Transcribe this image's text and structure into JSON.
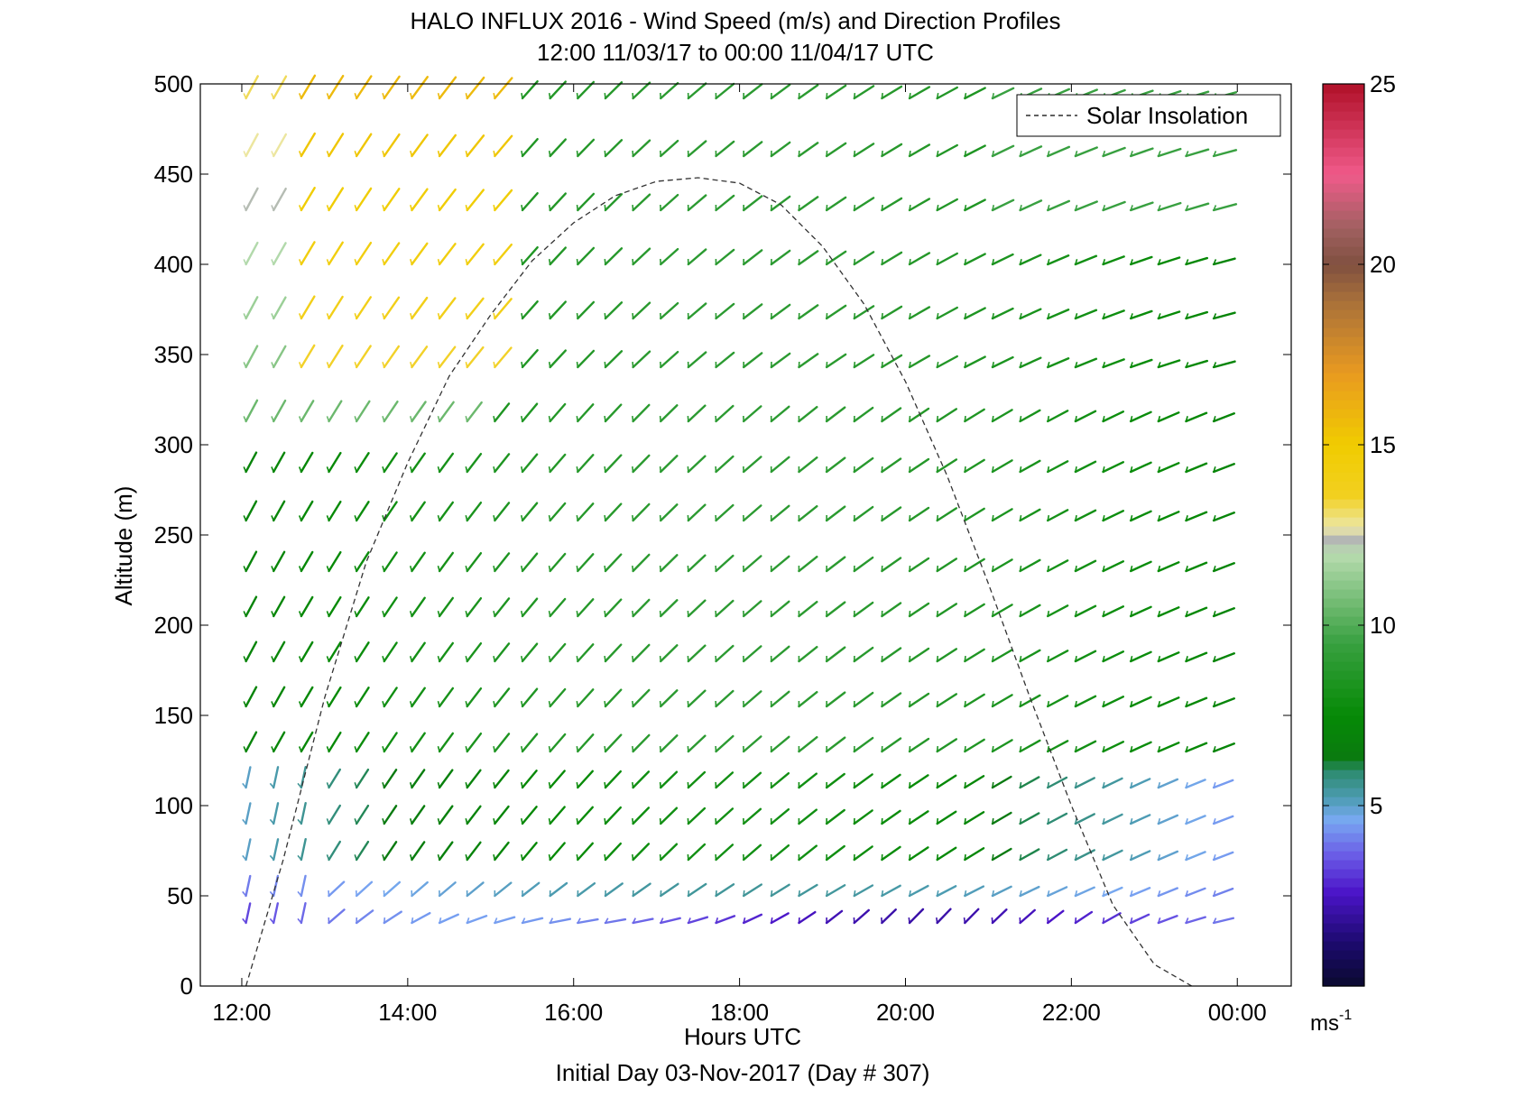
{
  "title_line1": "HALO INFLUX 2016 - Wind Speed (m/s) and Direction Profiles",
  "title_line2": "12:00 11/03/17 to 00:00 11/04/17  UTC",
  "xlabel": "Hours UTC",
  "ylabel": "Altitude (m)",
  "footer": "Initial Day 03-Nov-2017 (Day # 307)",
  "legend_label": "Solar Insolation",
  "colorbar": {
    "unit": "ms",
    "unit_exponent": "-1",
    "tick_labels": [
      "5",
      "10",
      "15",
      "20",
      "25"
    ],
    "tick_values": [
      5,
      10,
      15,
      20,
      25
    ],
    "range": [
      0,
      25
    ],
    "colors": [
      {
        "v": 0,
        "c": "#0a0a2e"
      },
      {
        "v": 1.2,
        "c": "#1c0a6e"
      },
      {
        "v": 2.6,
        "c": "#4b14c8"
      },
      {
        "v": 3.6,
        "c": "#6a5ae6"
      },
      {
        "v": 4.6,
        "c": "#78a8f2"
      },
      {
        "v": 5.2,
        "c": "#4e9cb4"
      },
      {
        "v": 6.0,
        "c": "#2a8a6a"
      },
      {
        "v": 6.3,
        "c": "#0a7a10"
      },
      {
        "v": 7.5,
        "c": "#068a06"
      },
      {
        "v": 9.5,
        "c": "#38a040"
      },
      {
        "v": 12.0,
        "c": "#b8dcb0"
      },
      {
        "v": 12.4,
        "c": "#b4b4b4"
      },
      {
        "v": 12.7,
        "c": "#ece8a8"
      },
      {
        "v": 13.6,
        "c": "#f2d020"
      },
      {
        "v": 15.0,
        "c": "#f0cc00"
      },
      {
        "v": 17.0,
        "c": "#e89a20"
      },
      {
        "v": 19.0,
        "c": "#a8703a"
      },
      {
        "v": 20.0,
        "c": "#805040"
      },
      {
        "v": 21.0,
        "c": "#a06060"
      },
      {
        "v": 22.5,
        "c": "#f05a8a"
      },
      {
        "v": 25.0,
        "c": "#b01028"
      }
    ]
  },
  "chart_data": {
    "type": "quiver",
    "title": "HALO INFLUX 2016 - Wind Speed (m/s) and Direction Profiles",
    "subtitle": "12:00 11/03/17 to 00:00 11/04/17  UTC",
    "xlabel": "Hours UTC",
    "ylabel": "Altitude (m)",
    "xlim_hours": [
      11.5,
      24.65
    ],
    "ylim": [
      0,
      500
    ],
    "x_ticks": [
      12,
      14,
      16,
      18,
      20,
      22,
      24
    ],
    "x_tick_labels": [
      "12:00",
      "14:00",
      "16:00",
      "18:00",
      "20:00",
      "22:00",
      "00:00"
    ],
    "y_ticks": [
      0,
      50,
      100,
      150,
      200,
      250,
      300,
      350,
      400,
      450,
      500
    ],
    "y_tick_labels": [
      "0",
      "50",
      "100",
      "150",
      "200",
      "250",
      "300",
      "350",
      "400",
      "450",
      "500"
    ],
    "vector_times_start": 12.05,
    "vector_time_step": 0.3333,
    "vector_count_per_row": 37,
    "altitude_rows": [
      35,
      50,
      70,
      90,
      110,
      130,
      155,
      180,
      205,
      230,
      258,
      285,
      313,
      343,
      370,
      400,
      430,
      460,
      492
    ],
    "wind_speed_ms_approx": {
      "lowest_level_35m": "2-5 (purple/blue)",
      "50_to_110m_before_13:00": "5-7 (blue/teal)",
      "midday_all_levels": "6-10 (green)",
      "upper_levels_12:00-15:00": "13-16 (yellow/orange)",
      "evening_low_levels": "4-6 (blue)"
    },
    "direction_trend": "Southwesterly aloft early; backing to more westerly/west-southwesterly through the evening at all levels",
    "series": [
      {
        "name": "Solar Insolation",
        "style": "dashed",
        "x_hours": [
          12.05,
          12.5,
          13.0,
          13.5,
          14.0,
          14.5,
          15.0,
          15.5,
          16.0,
          16.5,
          17.0,
          17.5,
          18.0,
          18.5,
          19.0,
          19.5,
          20.0,
          20.5,
          21.0,
          21.5,
          22.0,
          22.5,
          23.0,
          23.45
        ],
        "y": [
          0,
          70,
          160,
          235,
          290,
          338,
          372,
          402,
          423,
          438,
          446,
          448,
          445,
          433,
          410,
          378,
          335,
          283,
          223,
          160,
          100,
          45,
          12,
          0
        ]
      }
    ],
    "legend": {
      "entries": [
        "Solar Insolation"
      ],
      "placement": "top-right"
    },
    "grid": false
  }
}
